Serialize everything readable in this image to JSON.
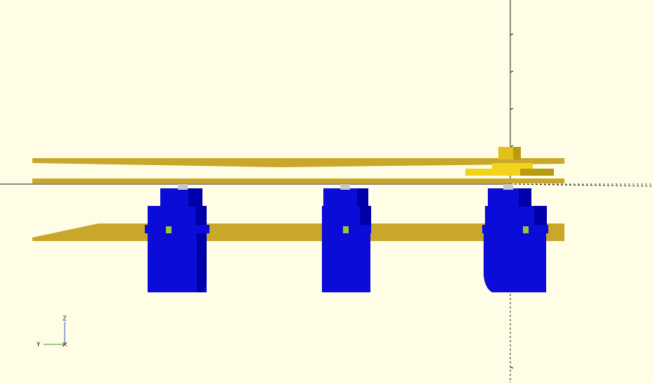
{
  "viewport": {
    "background": "#fffde6",
    "colors": {
      "plate": "#c9a72a",
      "plate_dark": "#a8891c",
      "servo": "#0c0cd8",
      "servo_dark": "#0000a8",
      "servo_light": "#2b2bff",
      "shaft": "#c8c8c8",
      "post": "#9cc43a",
      "gear": "#f2d21a",
      "gear_dark": "#b89b10",
      "axis": "#1a1a1a",
      "gizmo_x": "#d04040",
      "gizmo_y": "#2e9d2e",
      "gizmo_z": "#2e4fd0"
    }
  },
  "gizmo": {
    "z_label": "Z",
    "y_label": "Y",
    "x_label": "X"
  },
  "model": {
    "servo_count": 3,
    "parts": [
      "top-plate-upper",
      "top-plate-lower",
      "base-plate",
      "servo-left",
      "servo-middle",
      "servo-right",
      "gear-stack"
    ]
  }
}
